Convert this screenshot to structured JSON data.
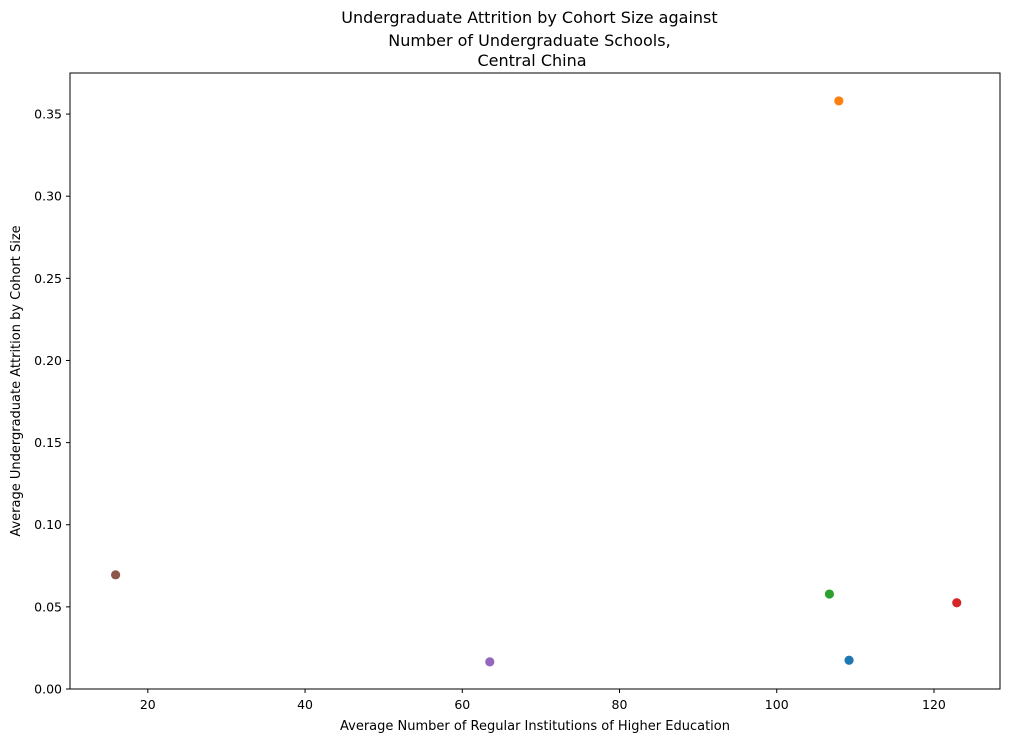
{
  "chart_data": {
    "type": "scatter",
    "title": [
      "Undergraduate Attrition by Cohort Size against",
      "Number of Undergraduate Schools,",
      "Central China"
    ],
    "xlabel": "Average Number of Regular Institutions of Higher Education",
    "ylabel": "Average Undergraduate Attrition by Cohort Size",
    "xlim": [
      10.1,
      128.4
    ],
    "ylim": [
      0.0,
      0.375
    ],
    "xticks": [
      20,
      40,
      60,
      80,
      100,
      120
    ],
    "yticks": [
      0.0,
      0.05,
      0.1,
      0.15,
      0.2,
      0.25,
      0.3,
      0.35
    ],
    "xtick_labels": [
      "20",
      "40",
      "60",
      "80",
      "100",
      "120"
    ],
    "ytick_labels": [
      "0.00",
      "0.05",
      "0.10",
      "0.15",
      "0.20",
      "0.25",
      "0.30",
      "0.35"
    ],
    "grid": false,
    "points": [
      {
        "x": 109.2,
        "y": 0.0175,
        "color": "#1f77b4"
      },
      {
        "x": 107.9,
        "y": 0.358,
        "color": "#ff7f0e"
      },
      {
        "x": 106.7,
        "y": 0.0578,
        "color": "#2ca02c"
      },
      {
        "x": 122.9,
        "y": 0.0525,
        "color": "#d62728"
      },
      {
        "x": 63.5,
        "y": 0.0165,
        "color": "#9467bd"
      },
      {
        "x": 15.9,
        "y": 0.0695,
        "color": "#8c564b"
      }
    ]
  }
}
